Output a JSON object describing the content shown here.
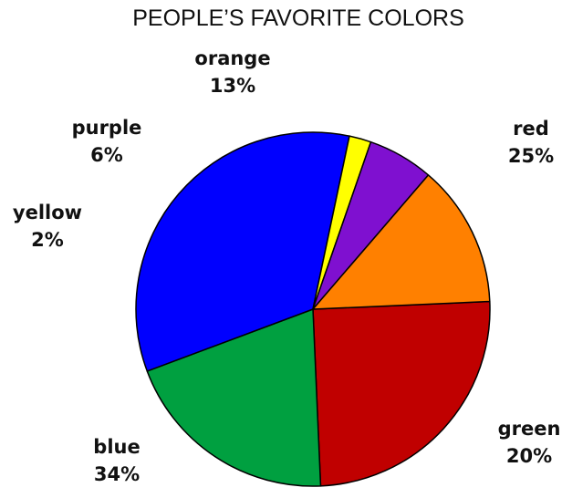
{
  "chart_data": {
    "type": "pie",
    "title": "PEOPLE’S FAVORITE COLORS",
    "slices": [
      {
        "label": "red",
        "value": 25,
        "value_label": "25%",
        "color": "#c00000"
      },
      {
        "label": "green",
        "value": 20,
        "value_label": "20%",
        "color": "#00a040"
      },
      {
        "label": "blue",
        "value": 34,
        "value_label": "34%",
        "color": "#0000ff"
      },
      {
        "label": "yellow",
        "value": 2,
        "value_label": "2%",
        "color": "#ffff00"
      },
      {
        "label": "purple",
        "value": 6,
        "value_label": "6%",
        "color": "#7f10d0"
      },
      {
        "label": "orange",
        "value": 13,
        "value_label": "13%",
        "color": "#ff8000"
      }
    ]
  }
}
